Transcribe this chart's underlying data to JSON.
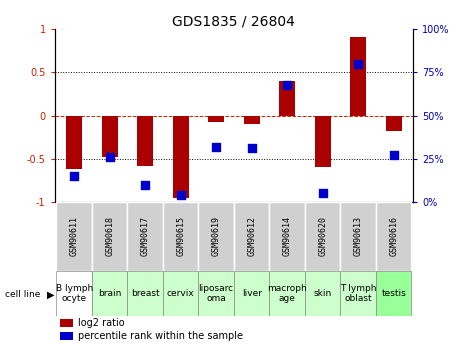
{
  "title": "GDS1835 / 26804",
  "samples": [
    "GSM90611",
    "GSM90618",
    "GSM90617",
    "GSM90615",
    "GSM90619",
    "GSM90612",
    "GSM90614",
    "GSM90620",
    "GSM90613",
    "GSM90616"
  ],
  "cell_lines": [
    "B lymph\nocyte",
    "brain",
    "breast",
    "cervix",
    "liposarc\noma",
    "liver",
    "macroph\nage",
    "skin",
    "T lymph\noblast",
    "testis"
  ],
  "cell_line_colors": [
    "#ffffff",
    "#ccffcc",
    "#ccffcc",
    "#ccffcc",
    "#ccffcc",
    "#ccffcc",
    "#ccffcc",
    "#ccffcc",
    "#ccffcc",
    "#99ff99"
  ],
  "log2_ratio": [
    -0.62,
    -0.48,
    -0.58,
    -0.95,
    -0.08,
    -0.1,
    0.4,
    -0.6,
    0.91,
    -0.18
  ],
  "percentile_rank": [
    15,
    26,
    10,
    4,
    32,
    31,
    68,
    5,
    80,
    27
  ],
  "bar_color": "#aa0000",
  "dot_color": "#0000cc",
  "ylim": [
    -1,
    1
  ],
  "y2lim": [
    0,
    100
  ],
  "yticks_left": [
    -1,
    -0.5,
    0,
    0.5,
    1
  ],
  "ytick_labels_left": [
    "-1",
    "-0.5",
    "0",
    "0.5",
    "1"
  ],
  "yticks_right": [
    0,
    25,
    50,
    75,
    100
  ],
  "ytick_labels_right": [
    "0%",
    "25%",
    "50%",
    "75%",
    "100%"
  ],
  "dotted_lines": [
    -0.5,
    0.5
  ],
  "zero_line": 0,
  "bar_width": 0.45,
  "dot_size": 30,
  "title_fontsize": 10,
  "tick_fontsize": 7,
  "sample_fontsize": 6,
  "cell_fontsize": 6.5
}
